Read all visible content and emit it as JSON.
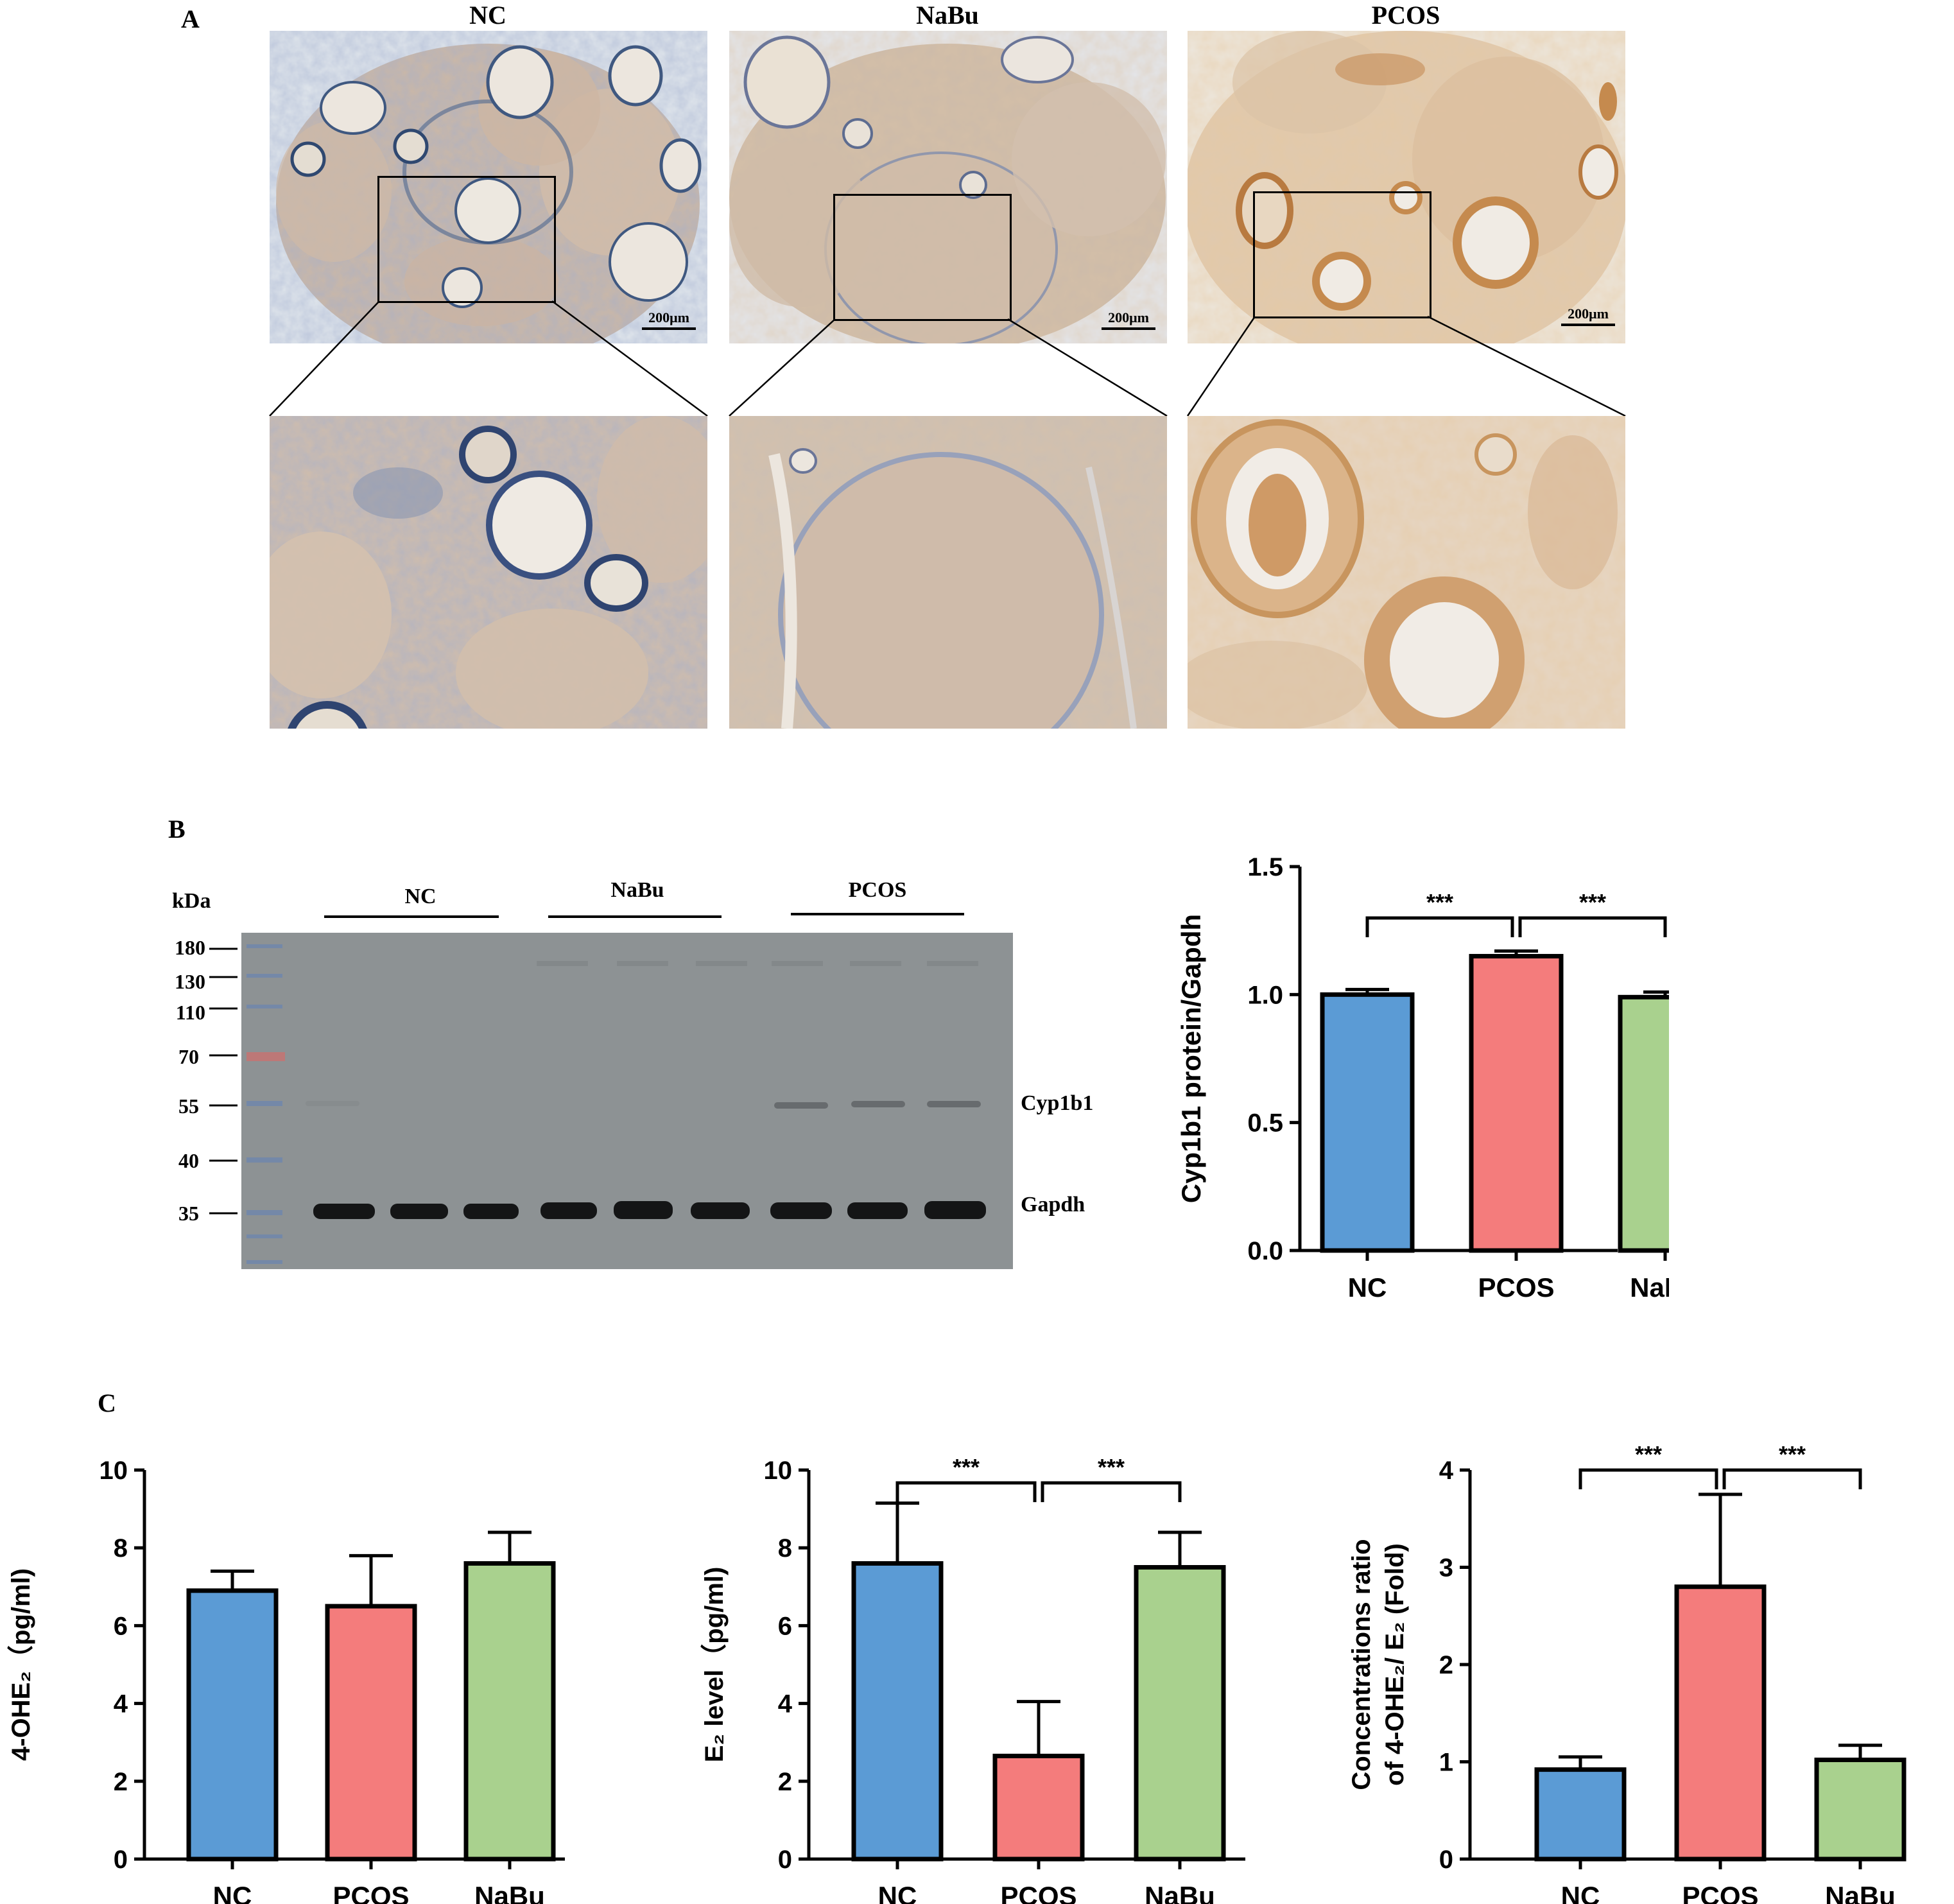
{
  "panels": {
    "A": "A",
    "B": "B",
    "C": "C"
  },
  "panel_a": {
    "titles": [
      "NC",
      "NaBu",
      "PCOS"
    ],
    "scalebar": "200μm"
  },
  "panel_b": {
    "kda_header": "kDa",
    "markers": [
      "180",
      "130",
      "110",
      "70",
      "55",
      "40",
      "35"
    ],
    "groups": [
      "NC",
      "NaBu",
      "PCOS"
    ],
    "bands": [
      "Cyp1b1",
      "Gapdh"
    ]
  },
  "colors": {
    "NC": "#5b9bd5",
    "PCOS": "#f47c7c",
    "NaBu": "#a9d18e"
  },
  "chart_data": [
    {
      "type": "bar",
      "categories": [
        "NC",
        "PCOS",
        "NaBu"
      ],
      "values": [
        1.0,
        1.15,
        0.99
      ],
      "errors": [
        0.02,
        0.02,
        0.02
      ],
      "ylabel": "Cyp1b1 protein/Gapdh",
      "ylim": [
        0,
        1.5
      ],
      "ticks": [
        "0.0",
        "0.5",
        "1.0",
        "1.5"
      ],
      "significance": [
        {
          "from": "NC",
          "to": "PCOS",
          "label": "***"
        },
        {
          "from": "PCOS",
          "to": "NaBu",
          "label": "***"
        }
      ]
    },
    {
      "type": "bar",
      "categories": [
        "NC",
        "PCOS",
        "NaBu"
      ],
      "values": [
        6.9,
        6.5,
        7.6
      ],
      "errors": [
        0.5,
        1.3,
        0.8
      ],
      "ylabel": "4-OHE₂（pg/ml)",
      "ylim": [
        0,
        10
      ],
      "ticks": [
        "0",
        "2",
        "4",
        "6",
        "8",
        "10"
      ],
      "significance": []
    },
    {
      "type": "bar",
      "categories": [
        "NC",
        "PCOS",
        "NaBu"
      ],
      "values": [
        7.6,
        2.65,
        7.5
      ],
      "errors": [
        1.55,
        1.4,
        0.9
      ],
      "ylabel": "E₂ level（pg/ml)",
      "ylim": [
        0,
        10
      ],
      "ticks": [
        "0",
        "2",
        "4",
        "6",
        "8",
        "10"
      ],
      "significance": [
        {
          "from": "NC",
          "to": "PCOS",
          "label": "***"
        },
        {
          "from": "PCOS",
          "to": "NaBu",
          "label": "***"
        }
      ]
    },
    {
      "type": "bar",
      "categories": [
        "NC",
        "PCOS",
        "NaBu"
      ],
      "values": [
        0.92,
        2.8,
        1.02
      ],
      "errors": [
        0.13,
        0.95,
        0.15
      ],
      "ylabel": [
        "Concentrations ratio",
        "of 4-OHE₂/ E₂ (Fold)"
      ],
      "ylim": [
        0,
        4
      ],
      "ticks": [
        "0",
        "1",
        "2",
        "3",
        "4"
      ],
      "significance": [
        {
          "from": "NC",
          "to": "PCOS",
          "label": "***"
        },
        {
          "from": "PCOS",
          "to": "NaBu",
          "label": "***"
        }
      ]
    }
  ]
}
